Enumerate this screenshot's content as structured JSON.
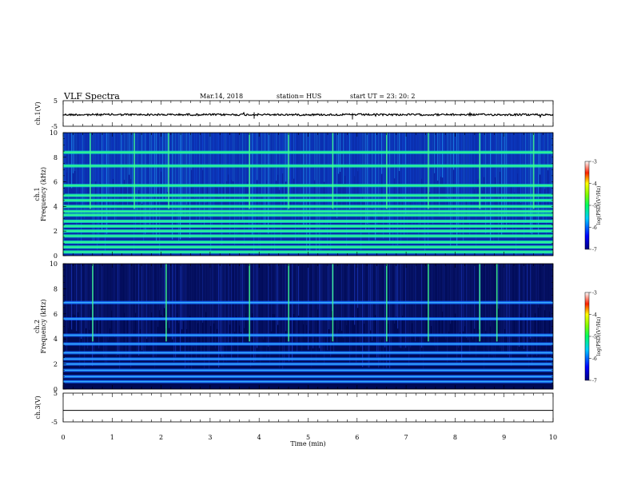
{
  "header": {
    "title": "VLF Spectra",
    "date": "Mar.14, 2018",
    "station": "station= HUS",
    "start": "start  UT  =    23: 20: 2"
  },
  "chart_data": [
    {
      "type": "line",
      "ylabel": "ch.1(V)",
      "ylim": [
        -5,
        5
      ],
      "yticks": [
        "5",
        "-5"
      ],
      "xlim": [
        0,
        10
      ],
      "description_values": "waveform near -0.5 V"
    },
    {
      "type": "heatmap",
      "ylabel": "ch.1\nFrequency (kHz)",
      "ylabel_top": "ch.1",
      "ylabel_bottom": "Frequency (kHz)",
      "ylim": [
        0,
        10
      ],
      "yticks": [
        "0",
        "2",
        "4",
        "6",
        "8",
        "10"
      ],
      "xlim": [
        0,
        10
      ],
      "colorbar": {
        "label": "log(PSD)(V²/Hz)",
        "range": [
          -7,
          -3
        ],
        "ticks": [
          "-3",
          "-4",
          "-5",
          "-6",
          "-7"
        ]
      },
      "bands_khz": [
        0.3,
        0.7,
        1.1,
        1.6,
        2.0,
        2.4,
        2.8,
        3.3,
        3.6,
        4.0,
        4.5,
        4.9,
        5.7,
        7.3,
        8.4
      ],
      "spikes_min": [
        0.55,
        1.45,
        2.15,
        3.8,
        4.6,
        5.5,
        6.6,
        7.45,
        8.5,
        9.6
      ]
    },
    {
      "type": "heatmap",
      "ylabel_top": "ch.2",
      "ylabel_bottom": "Frequency (kHz)",
      "ylim": [
        0,
        10
      ],
      "yticks": [
        "0",
        "2",
        "4",
        "6",
        "8",
        "10"
      ],
      "xlim": [
        0,
        10
      ],
      "colorbar": {
        "label": "log(PSD)(V²/Hz)",
        "range": [
          -7,
          -3
        ],
        "ticks": [
          "-3",
          "-4",
          "-5",
          "-6",
          "-7"
        ]
      },
      "bands_khz": [
        0.6,
        1.0,
        1.5,
        2.0,
        2.4,
        2.9,
        3.6,
        4.3,
        5.6,
        6.9
      ],
      "spikes_min": [
        0.6,
        2.1,
        3.8,
        4.6,
        5.5,
        6.6,
        7.45,
        8.5,
        8.85
      ]
    },
    {
      "type": "line",
      "ylabel": "ch.3(V)",
      "ylim": [
        -5,
        5
      ],
      "yticks": [
        "5",
        "-5"
      ],
      "xlim": [
        0,
        10
      ],
      "xlabel": "Time  (min)",
      "xticks": [
        "0",
        "1",
        "2",
        "3",
        "4",
        "5",
        "6",
        "7",
        "8",
        "9",
        "10"
      ],
      "description_values": "flat signal near -1 V"
    }
  ]
}
